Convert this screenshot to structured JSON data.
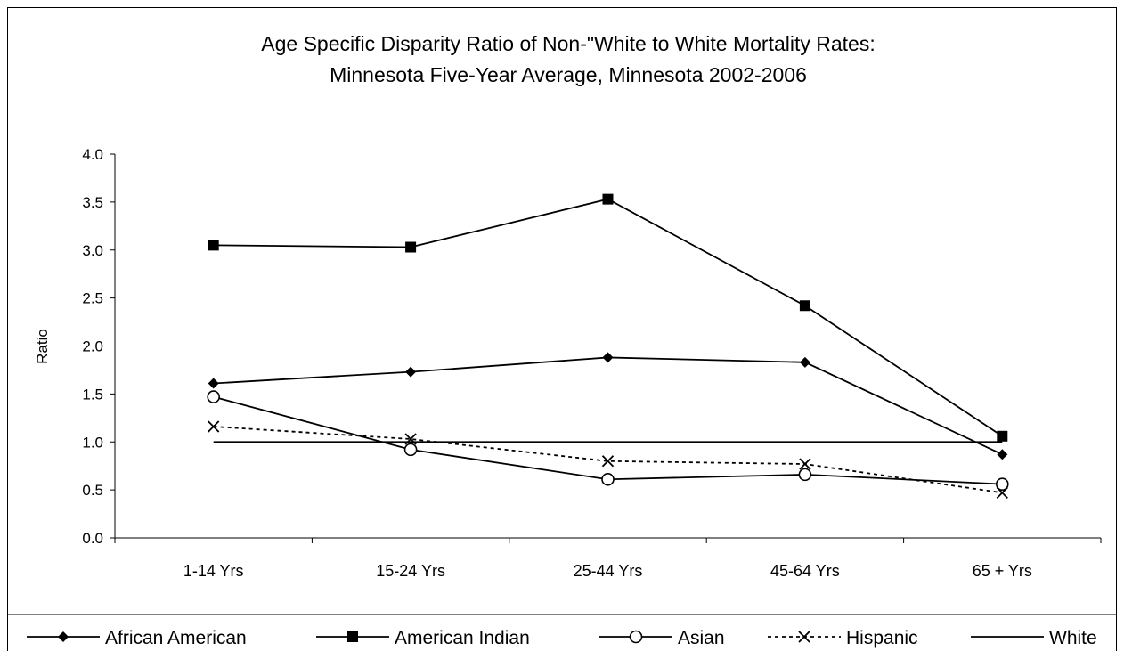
{
  "chart_data": {
    "type": "line",
    "title_line1": "Age Specific Disparity Ratio of Non-\"White to White Mortality Rates:",
    "title_line2": "Minnesota Five-Year Average, Minnesota 2002-2006",
    "xlabel": "",
    "ylabel": "Ratio",
    "categories": [
      "1-14 Yrs",
      "15-24 Yrs",
      "25-44 Yrs",
      "45-64 Yrs",
      "65 + Yrs"
    ],
    "ylim": [
      0,
      4
    ],
    "yticks": [
      "0.0",
      "0.5",
      "1.0",
      "1.5",
      "2.0",
      "2.5",
      "3.0",
      "3.5",
      "4.0"
    ],
    "grid": false,
    "legend_position": "bottom",
    "series": [
      {
        "name": "African American",
        "marker": "diamond",
        "dash": "solid",
        "values": [
          1.61,
          1.73,
          1.88,
          1.83,
          0.87
        ]
      },
      {
        "name": "American Indian",
        "marker": "square",
        "dash": "solid",
        "values": [
          3.05,
          3.03,
          3.53,
          2.42,
          1.06
        ]
      },
      {
        "name": "Asian",
        "marker": "circle",
        "dash": "solid",
        "values": [
          1.47,
          0.92,
          0.61,
          0.66,
          0.56
        ]
      },
      {
        "name": "Hispanic",
        "marker": "x",
        "dash": "dotted",
        "values": [
          1.16,
          1.03,
          0.8,
          0.77,
          0.47
        ]
      },
      {
        "name": "White",
        "marker": "none",
        "dash": "solid",
        "values": [
          1.0,
          1.0,
          1.0,
          1.0,
          1.0
        ]
      }
    ],
    "colors": {
      "line": "#000000",
      "background": "#ffffff"
    }
  }
}
